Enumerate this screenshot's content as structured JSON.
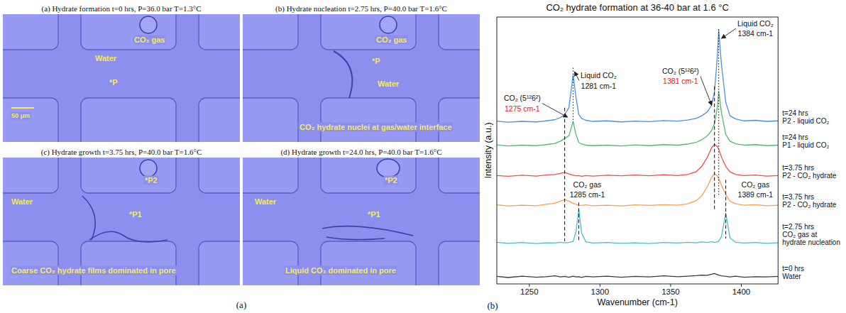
{
  "panel_a": {
    "label": "(a)",
    "micrographs": [
      {
        "title": "(a) Hydrate formation t=0 hrs, P=36.0 bar T=1.3°C",
        "labels": [
          "CO₂ gas",
          "Water",
          "*P"
        ],
        "scale_bar": "50 μm"
      },
      {
        "title": "(b) Hydrate nucleation t=2.75 hrs, P=40.0 bar T=1.6°C",
        "labels": [
          "CO₂ gas",
          "*P",
          "Water"
        ],
        "caption": "CO₂ hydrate nuclei at gas/water interface"
      },
      {
        "title": "(c) Hydrate growth t=3.75 hrs, P=40.0 bar T=1.6°C",
        "labels": [
          "Water",
          "*P2",
          "*P1"
        ],
        "caption": "Coarse CO₂ hydrate films dominated in pore"
      },
      {
        "title": "(d) Hydrate growth t=24.0 hrs, P=40.0 bar T=1.6°C",
        "labels": [
          "Water",
          "*P2",
          "*P1"
        ],
        "caption": "Liquid CO₂ dominated in pore"
      }
    ]
  },
  "chart_data": {
    "type": "line",
    "title": "CO₂ hydrate formation at 36-40 bar at 1.6 °C",
    "panel_label": "(b)",
    "x_label": "Wavenumber (cm-1)",
    "y_label": "Intensity (a.u.)",
    "xlim": [
      1227,
      1426
    ],
    "xticks": [
      1250,
      1300,
      1350,
      1400
    ],
    "ylim": [
      0,
      100
    ],
    "tick_labels": "x",
    "grid": false,
    "legend": "right",
    "x": [
      1227,
      1235,
      1245,
      1255,
      1262,
      1268,
      1272,
      1275,
      1278,
      1281,
      1283,
      1285,
      1287,
      1290,
      1295,
      1305,
      1315,
      1325,
      1335,
      1345,
      1355,
      1362,
      1368,
      1372,
      1376,
      1379,
      1381,
      1383,
      1384,
      1386,
      1389,
      1392,
      1396,
      1402,
      1410,
      1418,
      1426
    ],
    "series": [
      {
        "name": "t=0 hrs\nWater",
        "color": "#3a3a3a",
        "values": [
          2.8,
          2.4,
          2.9,
          2.5,
          2.7,
          3.0,
          2.6,
          2.8,
          2.5,
          2.9,
          2.6,
          2.7,
          2.4,
          2.8,
          2.6,
          2.9,
          2.5,
          2.8,
          2.6,
          3.0,
          2.7,
          2.9,
          3.1,
          3.3,
          3.2,
          3.6,
          3.9,
          3.5,
          3.3,
          3.0,
          2.8,
          2.6,
          2.9,
          2.5,
          2.7,
          2.6,
          2.8
        ]
      },
      {
        "name": "t=2.75 hrs\nCO₂ gas at\nhydrate nucleation",
        "color": "#47c1c8",
        "values": [
          15.6,
          15.2,
          15.5,
          15.1,
          15.4,
          15.3,
          15.6,
          15.4,
          15.5,
          15.9,
          19.5,
          28.0,
          19.0,
          15.8,
          15.3,
          15.5,
          15.2,
          15.4,
          15.1,
          15.5,
          15.3,
          15.6,
          15.4,
          15.7,
          15.5,
          15.8,
          15.6,
          15.7,
          16.0,
          17.8,
          26.5,
          17.2,
          15.6,
          15.3,
          15.5,
          15.2,
          15.4
        ]
      },
      {
        "name": "t=3.75 hrs\nP2 - CO₂ hydrate",
        "color": "#f5a04a",
        "values": [
          29.6,
          29.2,
          29.5,
          29.3,
          29.8,
          30.2,
          31.0,
          31.6,
          31.0,
          30.2,
          29.8,
          29.5,
          29.4,
          29.6,
          29.3,
          29.5,
          29.2,
          29.6,
          29.4,
          29.7,
          29.5,
          30.0,
          31.2,
          33.0,
          36.5,
          40.0,
          41.3,
          40.5,
          39.5,
          37.0,
          33.5,
          31.0,
          30.0,
          29.5,
          29.7,
          29.3,
          29.5
        ]
      },
      {
        "name": "t=3.75 hrs\nP2 - CO₂ hydrate",
        "color": "#e8504a",
        "values": [
          40.6,
          40.3,
          40.7,
          40.4,
          40.8,
          41.0,
          41.4,
          41.8,
          41.2,
          40.7,
          40.5,
          40.6,
          40.3,
          40.6,
          40.4,
          40.7,
          40.5,
          40.8,
          40.5,
          40.9,
          40.6,
          41.0,
          42.0,
          44.0,
          47.5,
          51.0,
          52.3,
          51.5,
          50.5,
          47.5,
          44.0,
          42.0,
          41.0,
          40.6,
          40.8,
          40.4,
          40.6
        ]
      },
      {
        "name": "t=24 hrs\nP1 - liquid CO₂",
        "color": "#56b870",
        "values": [
          52.1,
          51.7,
          52.0,
          51.8,
          52.2,
          52.6,
          53.5,
          54.5,
          55.5,
          60.8,
          56.0,
          53.0,
          52.4,
          52.0,
          51.8,
          52.0,
          51.7,
          52.1,
          51.8,
          52.2,
          52.0,
          52.4,
          53.0,
          54.0,
          55.5,
          57.5,
          60.0,
          66.0,
          72.2,
          64.0,
          56.0,
          53.5,
          52.5,
          52.0,
          52.2,
          51.8,
          52.0
        ]
      },
      {
        "name": "t=24 hrs\nP2 - liquid CO₂",
        "color": "#4a90e2",
        "values": [
          61.0,
          60.6,
          60.9,
          60.7,
          61.1,
          61.5,
          62.3,
          63.5,
          66.0,
          78.3,
          70.0,
          63.5,
          62.0,
          61.3,
          60.9,
          61.1,
          60.7,
          61.0,
          60.8,
          61.2,
          61.0,
          61.4,
          62.0,
          63.0,
          64.5,
          67.0,
          72.0,
          85.0,
          95.2,
          82.0,
          68.0,
          63.0,
          61.8,
          61.1,
          61.3,
          60.9,
          61.1
        ]
      }
    ],
    "annotations": [
      {
        "text": "Liquid CO₂",
        "label": "1281 cm-1",
        "x": 1281,
        "line_style": "dotted",
        "color": "#111111"
      },
      {
        "text": "Liquid CO₂",
        "label": "1384 cm-1",
        "x": 1384,
        "line_style": "dotted",
        "color": "#111111"
      },
      {
        "text": "CO₂ (5¹²6²)",
        "label": "1275 cm-1",
        "x": 1275,
        "line_style": "dashed",
        "color": "#e8141b"
      },
      {
        "text": "CO₂ (5¹²6²)",
        "label": "1381 cm-1",
        "x": 1381,
        "line_style": "dashed",
        "color": "#e8141b"
      },
      {
        "text": "CO₂ gas",
        "label": "1285 cm-1",
        "x": 1285,
        "line_style": "dashed",
        "color": "#111111"
      },
      {
        "text": "CO₂ gas",
        "label": "1389 cm-1",
        "x": 1389,
        "line_style": "dashed",
        "color": "#111111"
      }
    ]
  }
}
